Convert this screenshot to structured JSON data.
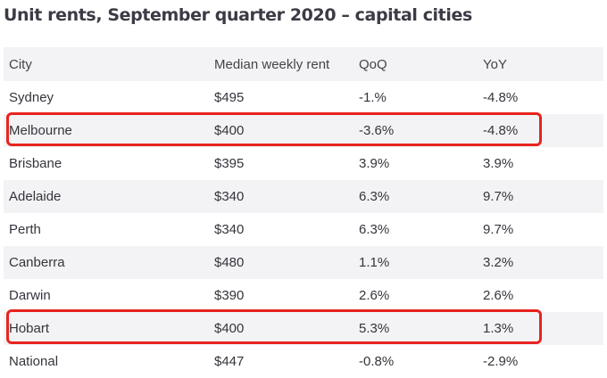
{
  "title": "Unit rents, September quarter 2020 – capital cities",
  "columns": {
    "city": "City",
    "rent": "Median weekly rent",
    "qoq": "QoQ",
    "yoy": "YoY"
  },
  "rows": [
    {
      "city": "Sydney",
      "rent": "$495",
      "qoq": "-1.%",
      "yoy": "-4.8%"
    },
    {
      "city": "Melbourne",
      "rent": "$400",
      "qoq": "-3.6%",
      "yoy": "-4.8%"
    },
    {
      "city": "Brisbane",
      "rent": "$395",
      "qoq": "3.9%",
      "yoy": "3.9%"
    },
    {
      "city": "Adelaide",
      "rent": "$340",
      "qoq": "6.3%",
      "yoy": "9.7%"
    },
    {
      "city": "Perth",
      "rent": "$340",
      "qoq": "6.3%",
      "yoy": "9.7%"
    },
    {
      "city": "Canberra",
      "rent": "$480",
      "qoq": "1.1%",
      "yoy": "3.2%"
    },
    {
      "city": "Darwin",
      "rent": "$390",
      "qoq": "2.6%",
      "yoy": "2.6%"
    },
    {
      "city": "Hobart",
      "rent": "$400",
      "qoq": "5.3%",
      "yoy": "1.3%"
    },
    {
      "city": "National",
      "rent": "$447",
      "qoq": "-0.8%",
      "yoy": "-2.9%"
    }
  ],
  "highlighted_rows": [
    "Melbourne",
    "Hobart"
  ],
  "colors": {
    "header_background": "#f3f3f5",
    "stripe_background": "#f3f3f5",
    "highlight_border": "#e8231f",
    "text": "#34343c"
  }
}
